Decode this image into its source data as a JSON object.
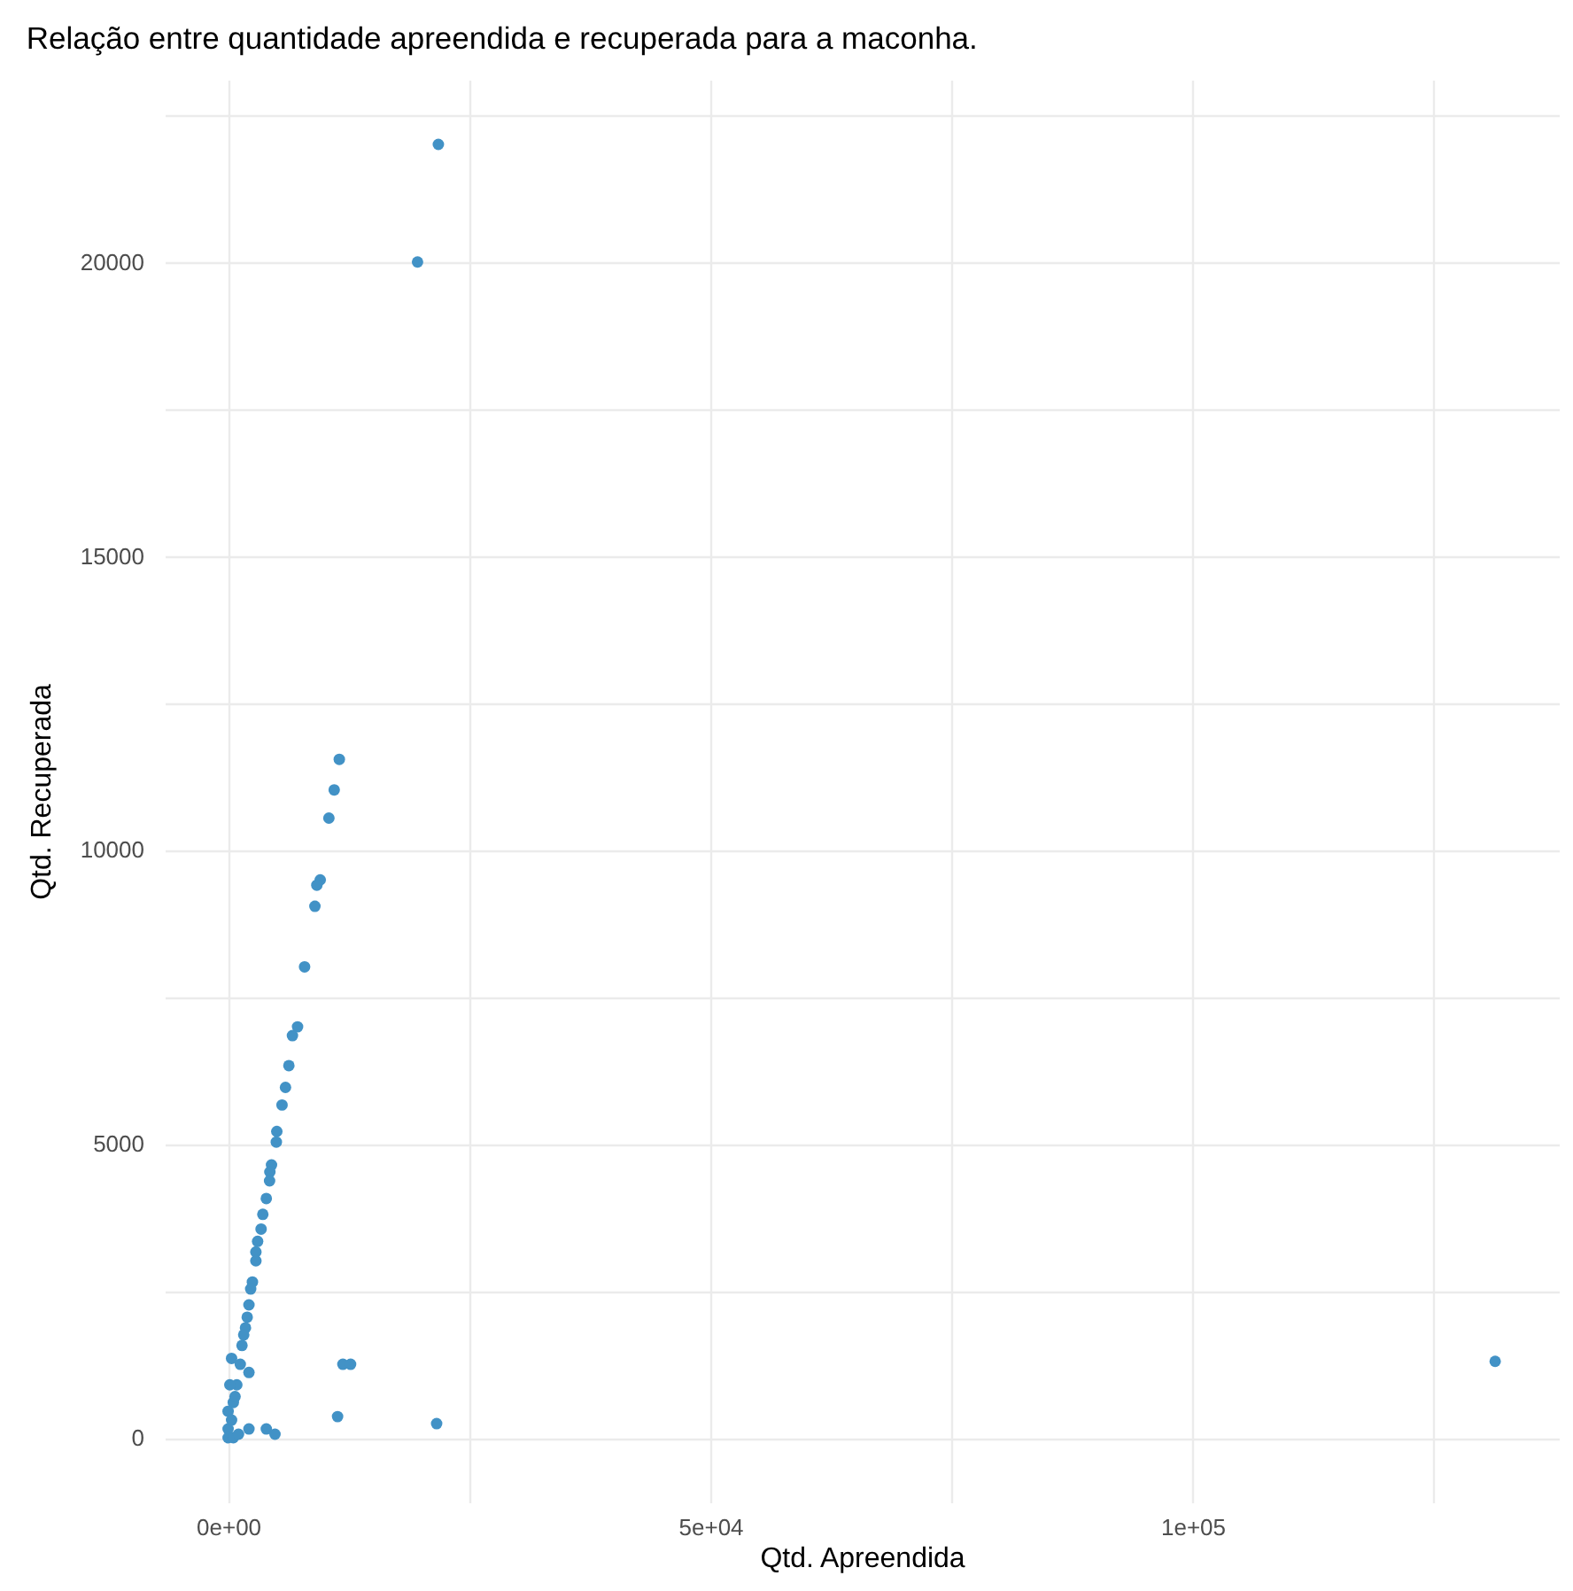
{
  "chart_data": {
    "type": "scatter",
    "title": "Relação entre quantidade apreendida e recuperada para a maconha.",
    "xlabel": "Qtd. Apreendida",
    "ylabel": "Qtd. Recuperada",
    "x": [
      21800,
      19640,
      11530,
      11000,
      10450,
      9550,
      9200,
      9000,
      7930,
      7200,
      6670,
      6300,
      5950,
      5590,
      5050,
      5000,
      4500,
      4330,
      4300,
      3960,
      3600,
      3420,
      3060,
      2880,
      2880,
      2520,
      2340,
      2160,
      1980,
      1800,
      1620,
      1440,
      2160,
      900,
      360,
      1260,
      540,
      0,
      0,
      540,
      1080,
      2160,
      3960,
      4860,
      11350,
      11900,
      12700,
      21620,
      131370,
      0,
      180,
      360,
      720
    ],
    "series": [
      {
        "color": "#4292c6",
        "values": [
          22000,
          20000,
          11540,
          11020,
          10540,
          9490,
          9400,
          9040,
          8010,
          6990,
          6840,
          6330,
          5960,
          5660,
          5210,
          5030,
          4640,
          4520,
          4370,
          4070,
          3800,
          3550,
          3340,
          3160,
          3010,
          2650,
          2530,
          2260,
          2050,
          1870,
          1750,
          1570,
          1110,
          900,
          1350,
          1250,
          600,
          150,
          0,
          0,
          60,
          150,
          150,
          60,
          360,
          1250,
          1250,
          240,
          1300,
          450,
          900,
          300,
          700
        ]
      }
    ],
    "xlim": [
      -6570,
      137970
    ],
    "ylim": [
      -1100,
      23100
    ],
    "xticks": [
      {
        "value": 0,
        "label": "0e+00"
      },
      {
        "value": 25000,
        "label": null
      },
      {
        "value": 50000,
        "label": "5e+04"
      },
      {
        "value": 75000,
        "label": null
      },
      {
        "value": 100000,
        "label": "1e+05"
      },
      {
        "value": 125000,
        "label": null
      }
    ],
    "yticks": [
      0,
      {
        "value": 2500,
        "label": null
      },
      5000,
      {
        "value": 7500,
        "label": null
      },
      10000,
      {
        "value": 12500,
        "label": null
      },
      15000,
      {
        "value": 17500,
        "label": null
      },
      20000,
      {
        "value": 22500,
        "label": null
      }
    ],
    "grid": true,
    "marker": "circle"
  }
}
